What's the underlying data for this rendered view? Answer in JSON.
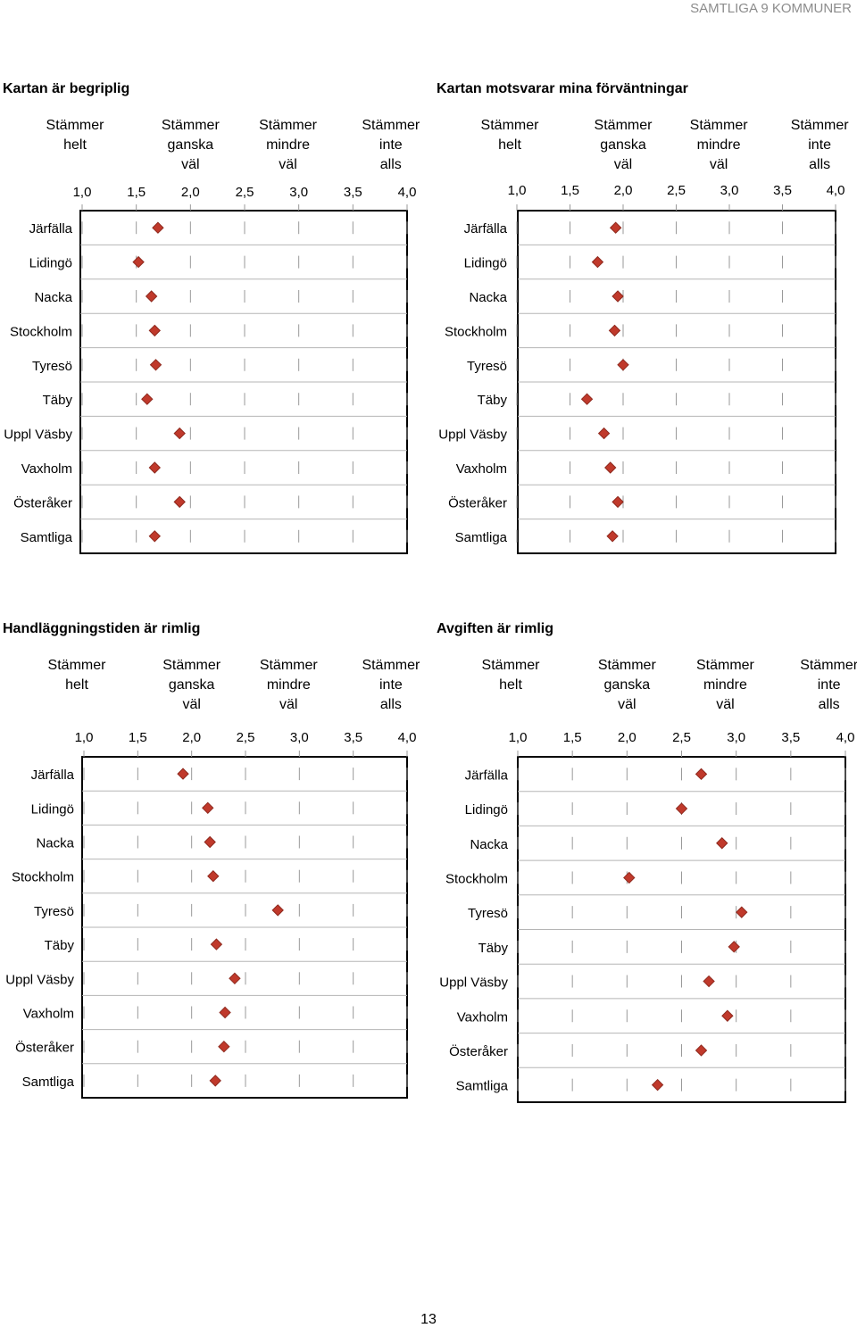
{
  "header": {
    "label": "SAMTLIGA 9 KOMMUNER"
  },
  "page_number": "13",
  "scale_labels": [
    [
      "Stämmer",
      "helt"
    ],
    [
      "Stämmer",
      "ganska",
      "väl"
    ],
    [
      "Stämmer",
      "mindre",
      "väl"
    ],
    [
      "Stämmer",
      "inte",
      "alls"
    ]
  ],
  "colors": {
    "marker": "#c0392b",
    "marker_stroke": "#8e2a1f",
    "frame": "#000000",
    "grid": "#999999"
  },
  "chart_data": [
    {
      "type": "scatter",
      "title": "Kartan är begriplig",
      "x_ticks": [
        "1,0",
        "1,5",
        "2,0",
        "2,5",
        "3,0",
        "3,5",
        "4,0"
      ],
      "xlim": [
        1.0,
        4.0
      ],
      "categories": [
        "Järfälla",
        "Lidingö",
        "Nacka",
        "Stockholm",
        "Tyresö",
        "Täby",
        "Uppl Väsby",
        "Vaxholm",
        "Österåker",
        "Samtliga"
      ],
      "values": [
        1.7,
        1.52,
        1.64,
        1.67,
        1.68,
        1.6,
        1.9,
        1.67,
        1.9,
        1.67
      ],
      "marker": "diamond",
      "grid": true
    },
    {
      "type": "scatter",
      "title": "Kartan motsvarar mina förväntningar",
      "x_ticks": [
        "1,0",
        "1,5",
        "2,0",
        "2,5",
        "3,0",
        "3,5",
        "4,0"
      ],
      "xlim": [
        1.0,
        4.0
      ],
      "categories": [
        "Järfälla",
        "Lidingö",
        "Nacka",
        "Stockholm",
        "Tyresö",
        "Täby",
        "Uppl Väsby",
        "Vaxholm",
        "Österåker",
        "Samtliga"
      ],
      "values": [
        1.93,
        1.76,
        1.95,
        1.92,
        2.0,
        1.66,
        1.82,
        1.88,
        1.95,
        1.9
      ],
      "marker": "diamond",
      "grid": true
    },
    {
      "type": "scatter",
      "title": "Handläggningstiden är rimlig",
      "x_ticks": [
        "1,0",
        "1,5",
        "2,0",
        "2,5",
        "3,0",
        "3,5",
        "4,0"
      ],
      "xlim": [
        1.0,
        4.0
      ],
      "categories": [
        "Järfälla",
        "Lidingö",
        "Nacka",
        "Stockholm",
        "Tyresö",
        "Täby",
        "Uppl Väsby",
        "Vaxholm",
        "Österåker",
        "Samtliga"
      ],
      "values": [
        1.92,
        2.15,
        2.17,
        2.2,
        2.8,
        2.23,
        2.4,
        2.31,
        2.3,
        2.22
      ],
      "marker": "diamond",
      "grid": true
    },
    {
      "type": "scatter",
      "title": "Avgiften är rimlig",
      "x_ticks": [
        "1,0",
        "1,5",
        "2,0",
        "2,5",
        "3,0",
        "3,5",
        "4,0"
      ],
      "xlim": [
        1.0,
        4.0
      ],
      "categories": [
        "Järfälla",
        "Lidingö",
        "Nacka",
        "Stockholm",
        "Tyresö",
        "Täby",
        "Uppl Väsby",
        "Vaxholm",
        "Österåker",
        "Samtliga"
      ],
      "values": [
        2.68,
        2.5,
        2.87,
        2.02,
        3.05,
        2.98,
        2.75,
        2.92,
        2.68,
        2.28
      ],
      "marker": "diamond",
      "grid": true
    }
  ]
}
